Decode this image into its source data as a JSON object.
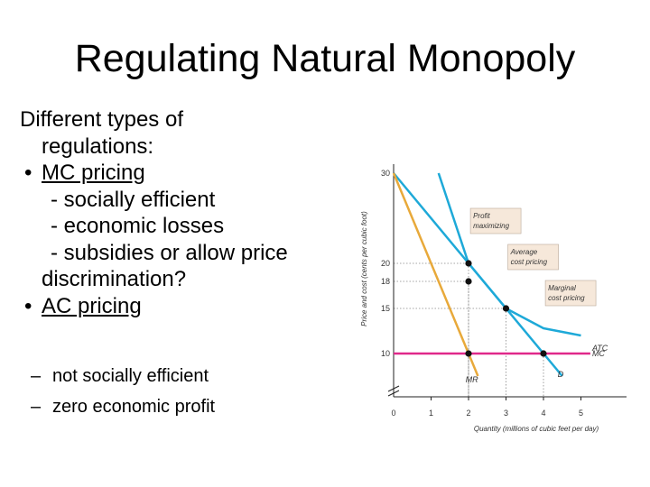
{
  "slide": {
    "title": "Regulating Natural Monopoly",
    "intro_1": "Different types of",
    "intro_2": "regulations:",
    "bullet_glyph": "•",
    "bullet_1": "MC pricing",
    "mc_points": [
      "- socially efficient",
      "- economic losses",
      "- subsidies or allow price"
    ],
    "mc_point_continued": "discrimination?",
    "bullet_2": "AC pricing",
    "sub_dash": "–",
    "ac_points": [
      "not socially efficient",
      "zero economic profit"
    ]
  },
  "chart_data": {
    "type": "line",
    "xlabel": "Quantity (millions of cubic feet per day)",
    "ylabel": "Price and cost (cents per cubic foot)",
    "x_ticks": [
      "0",
      "1",
      "2",
      "3",
      "4",
      "5"
    ],
    "y_ticks": [
      "10",
      "15",
      "18",
      "20",
      "30"
    ],
    "xlim": [
      0,
      5
    ],
    "ylim": [
      10,
      30
    ],
    "grid": false,
    "series": [
      {
        "name": "D",
        "color": "#1ea9d8",
        "x": [
          0,
          4.5
        ],
        "y": [
          30,
          7.5
        ]
      },
      {
        "name": "MR",
        "color": "#e8a93a",
        "x": [
          0,
          2.25
        ],
        "y": [
          30,
          7.5
        ]
      },
      {
        "name": "ATC",
        "color": "#1ea9d8",
        "x": [
          1.2,
          2,
          3,
          4,
          5
        ],
        "y": [
          30,
          20,
          15,
          12.8,
          12
        ]
      },
      {
        "name": "MC",
        "color": "#e0288a",
        "x": [
          0,
          5.25
        ],
        "y": [
          10,
          10
        ]
      }
    ],
    "points": [
      {
        "x": 2,
        "y": 20
      },
      {
        "x": 2,
        "y": 18
      },
      {
        "x": 3,
        "y": 15
      },
      {
        "x": 2,
        "y": 10
      },
      {
        "x": 4,
        "y": 10
      }
    ],
    "annotations": [
      {
        "text_lines": [
          "Profit",
          "maximizing"
        ],
        "x": 2.05,
        "y": 25
      },
      {
        "text_lines": [
          "Average",
          "cost pricing"
        ],
        "x": 3.05,
        "y": 21
      },
      {
        "text_lines": [
          "Marginal",
          "cost pricing"
        ],
        "x": 4.05,
        "y": 17
      }
    ]
  }
}
